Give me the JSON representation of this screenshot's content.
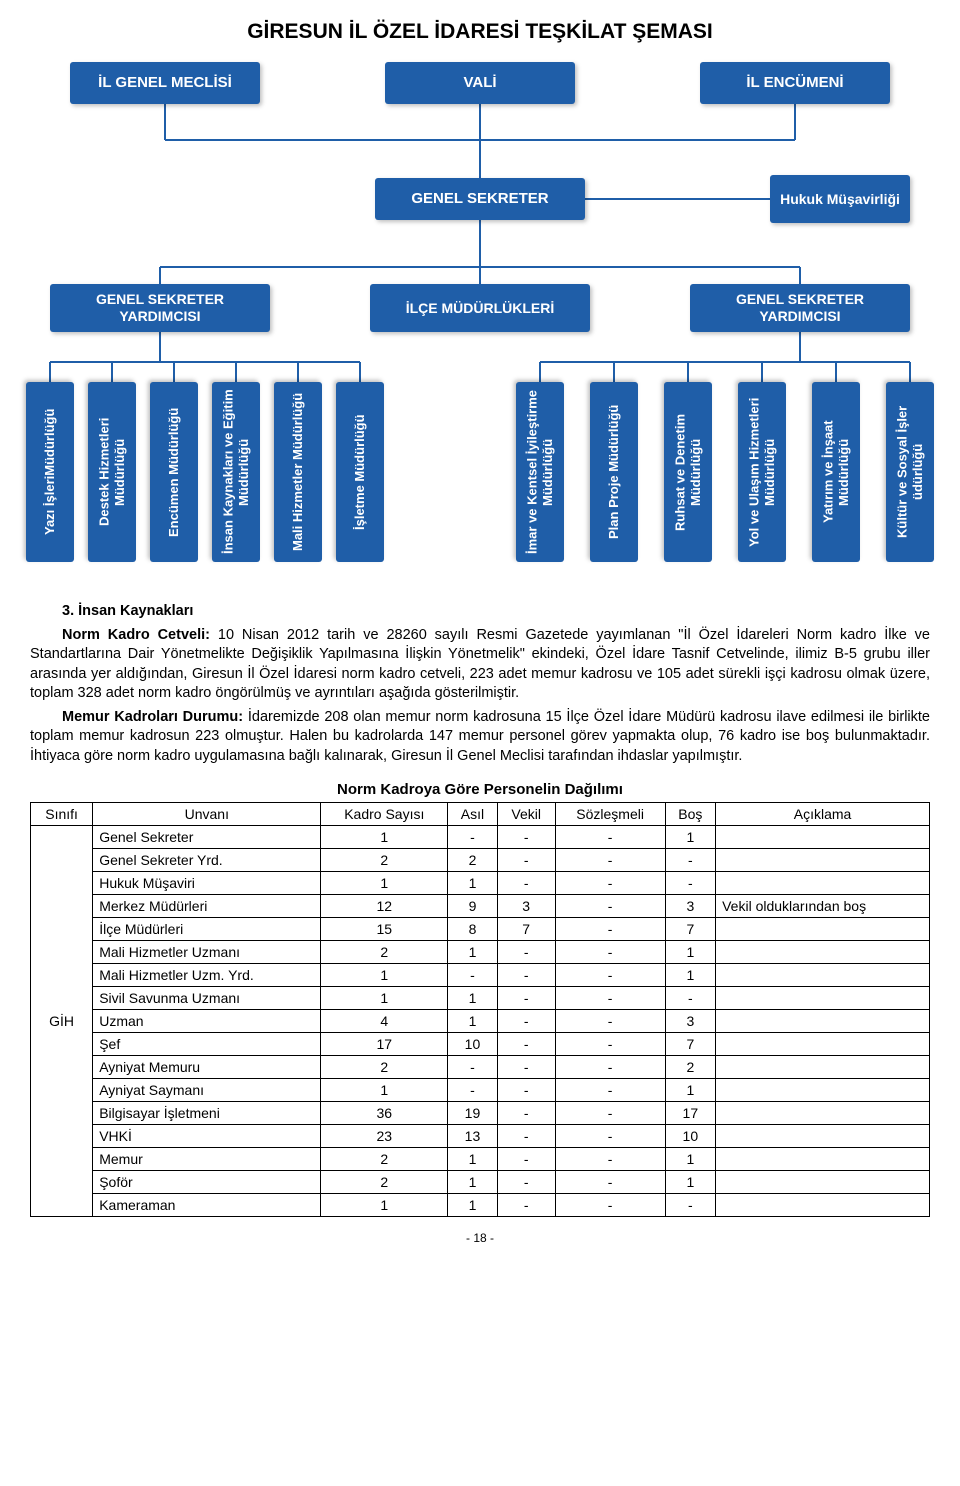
{
  "page": {
    "title": "GİRESUN İL ÖZEL İDARESİ TEŞKİLAT ŞEMASI",
    "footer": "- 18 -"
  },
  "org": {
    "colors": {
      "node_bg": "#1f5ea8",
      "node_fg": "#ffffff",
      "line": "#1f5ea8"
    },
    "top": [
      {
        "label": "İL GENEL MECLİSİ"
      },
      {
        "label": "VALİ"
      },
      {
        "label": "İL ENCÜMENİ"
      }
    ],
    "mid": {
      "label": "GENEL SEKRETER"
    },
    "side": {
      "label": "Hukuk Müşavirliği"
    },
    "secondary": [
      {
        "label": "GENEL SEKRETER YARDIMCISI"
      },
      {
        "label": "İLÇE MÜDÜRLÜKLERİ"
      },
      {
        "label": "GENEL SEKRETER YARDIMCISI"
      }
    ],
    "dept_left": [
      "Yazı İşleriMüdürlüğü",
      "Destek Hizmetleri Müdürlüğü",
      "Encümen Müdürlüğü",
      "İnsan Kaynakları ve Eğitim Müdürlüğü",
      "Mali Hizmetler Müdürlüğü",
      "İşletme Müdürlüğü"
    ],
    "dept_right": [
      "İmar ve Kentsel İyileştirme Müdürlüğü",
      "Plan Proje Müdürlüğü",
      "Ruhsat ve Denetim Müdürlüğü",
      "Yol ve Ulaşım Hizmetleri Müdürlüğü",
      "Yatırım ve İnşaat Müdürlüğü",
      "Kültür ve Sosyal İşler üdürlüğü"
    ]
  },
  "text": {
    "sect_heading": "3. İnsan Kaynakları",
    "p1_lead": "Norm Kadro Cetveli:",
    "p1": " 10 Nisan 2012 tarih ve 28260 sayılı Resmi Gazetede yayımlanan \"İl Özel İdareleri Norm kadro İlke ve Standartlarına Dair Yönetmelikte Değişiklik Yapılmasına İlişkin Yönetmelik\" ekindeki, Özel İdare Tasnif Cetvelinde, ilimiz B-5 grubu iller arasında yer aldığından, Giresun İl Özel İdaresi norm kadro cetveli, 223 adet memur kadrosu ve 105 adet sürekli işçi kadrosu olmak üzere, toplam 328 adet norm kadro öngörülmüş ve ayrıntıları aşağıda gösterilmiştir.",
    "p2_lead": "Memur Kadroları Durumu:",
    "p2": " İdaremizde 208 olan memur norm kadrosuna 15 İlçe Özel İdare Müdürü kadrosu ilave edilmesi ile birlikte toplam memur kadrosun 223 olmuştur. Halen bu kadrolarda 147 memur personel görev yapmakta olup, 76 kadro ise boş bulunmaktadır. İhtiyaca göre norm kadro uygulamasına bağlı kalınarak, Giresun İl Genel Meclisi tarafından ihdaslar yapılmıştır."
  },
  "table": {
    "title": "Norm Kadroya Göre Personelin Dağılımı",
    "columns": [
      "Sınıfı",
      "Unvanı",
      "Kadro Sayısı",
      "Asıl",
      "Vekil",
      "Sözleşmeli",
      "Boş",
      "Açıklama"
    ],
    "sinif": "GİH",
    "rows": [
      [
        "Genel Sekreter",
        "1",
        "-",
        "-",
        "-",
        "1",
        ""
      ],
      [
        "Genel Sekreter Yrd.",
        "2",
        "2",
        "-",
        "-",
        "-",
        ""
      ],
      [
        "Hukuk Müşaviri",
        "1",
        "1",
        "-",
        "-",
        "-",
        ""
      ],
      [
        "Merkez Müdürleri",
        "12",
        "9",
        "3",
        "-",
        "3",
        "Vekil olduklarından boş"
      ],
      [
        "İlçe Müdürleri",
        "15",
        "8",
        "7",
        "-",
        "7",
        ""
      ],
      [
        "Mali Hizmetler Uzmanı",
        "2",
        "1",
        "-",
        "-",
        "1",
        ""
      ],
      [
        "Mali Hizmetler Uzm. Yrd.",
        "1",
        "-",
        "-",
        "-",
        "1",
        ""
      ],
      [
        "Sivil Savunma Uzmanı",
        "1",
        "1",
        "-",
        "-",
        "-",
        ""
      ],
      [
        "Uzman",
        "4",
        "1",
        "-",
        "-",
        "3",
        ""
      ],
      [
        "Şef",
        "17",
        "10",
        "-",
        "-",
        "7",
        ""
      ],
      [
        "Ayniyat Memuru",
        "2",
        "-",
        "-",
        "-",
        "2",
        ""
      ],
      [
        "Ayniyat Saymanı",
        "1",
        "-",
        "-",
        "-",
        "1",
        ""
      ],
      [
        "Bilgisayar İşletmeni",
        "36",
        "19",
        "-",
        "-",
        "17",
        ""
      ],
      [
        "VHKİ",
        "23",
        "13",
        "-",
        "-",
        "10",
        ""
      ],
      [
        "Memur",
        "2",
        "1",
        "-",
        "-",
        "1",
        ""
      ],
      [
        "Şoför",
        "2",
        "1",
        "-",
        "-",
        "1",
        ""
      ],
      [
        "Kameraman",
        "1",
        "1",
        "-",
        "-",
        "-",
        ""
      ]
    ]
  }
}
